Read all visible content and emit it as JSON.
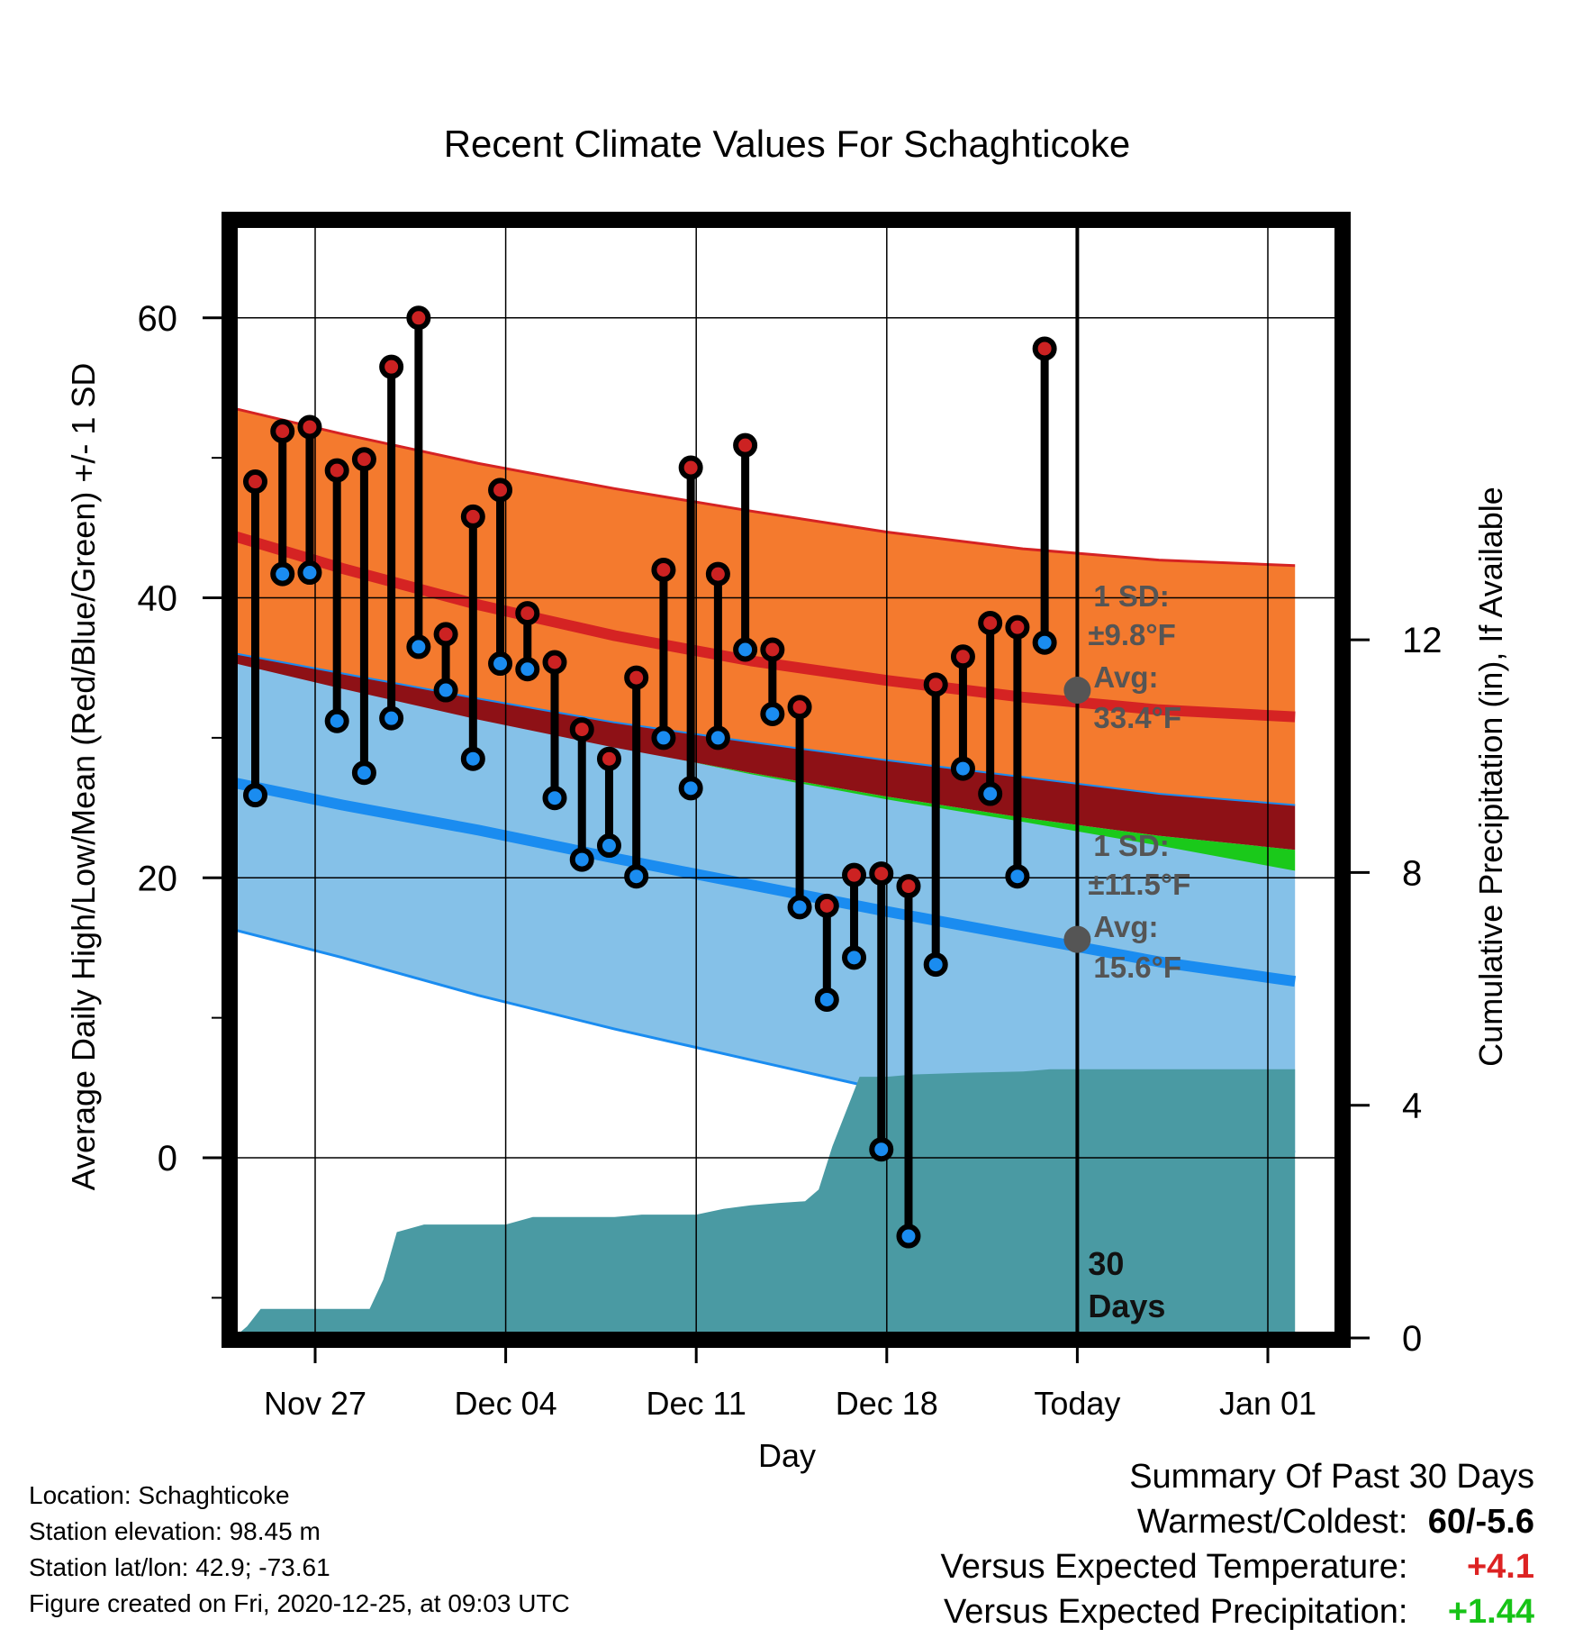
{
  "chart_data": {
    "type": "line",
    "title": "Recent Climate Values For Schaghticoke",
    "xlabel": "Day",
    "ylabel": "Average Daily High/Low/Mean (Red/Blue/Green) +/- 1 SD",
    "y2label": "Cumulative Precipitation (in), If Available",
    "ylim": [
      -13,
      67
    ],
    "y2lim": [
      0,
      19.25
    ],
    "x_ticks": [
      {
        "day": 4,
        "label": "Nov 27"
      },
      {
        "day": 11,
        "label": "Dec 04"
      },
      {
        "day": 18,
        "label": "Dec 11"
      },
      {
        "day": 25,
        "label": "Dec 18"
      },
      {
        "day": 32,
        "label": "Today"
      },
      {
        "day": 39,
        "label": "Jan 01"
      }
    ],
    "y_ticks": [
      0,
      20,
      40,
      60
    ],
    "y2_ticks": [
      0,
      4,
      8,
      12
    ],
    "grid": true,
    "today_day": 32,
    "today_label": "30 Days",
    "normals": {
      "days": [
        0,
        5,
        10,
        15,
        20,
        25,
        30,
        35,
        40
      ],
      "high_upper": [
        54.0,
        51.7,
        49.6,
        47.8,
        46.2,
        44.7,
        43.5,
        42.7,
        42.3
      ],
      "high_mean": [
        45.0,
        42.1,
        39.5,
        37.3,
        35.5,
        34.1,
        32.9,
        32.0,
        31.5
      ],
      "high_lower": [
        36.4,
        34.6,
        32.8,
        31.1,
        29.7,
        28.4,
        27.2,
        26.0,
        25.2
      ],
      "mean_upper": [
        35.8,
        33.5,
        31.3,
        29.3,
        27.5,
        25.8,
        24.3,
        23.0,
        22.0
      ],
      "mean_lower": [
        34.3,
        32.0,
        29.8,
        27.8,
        26.0,
        24.3,
        22.8,
        21.5,
        20.5
      ],
      "low_upper": [
        36.2,
        33.8,
        31.5,
        29.4,
        27.4,
        25.6,
        24.0,
        22.3,
        20.5
      ],
      "low_mean": [
        27.2,
        25.2,
        23.4,
        21.4,
        19.5,
        17.6,
        15.8,
        14.0,
        12.6
      ],
      "low_lower": [
        16.8,
        14.3,
        11.6,
        9.2,
        7.0,
        4.8,
        3.1,
        1.5,
        0.4
      ]
    },
    "high_label": {
      "sd": "1 SD:",
      "sd_value": "±9.8°F",
      "avg": "Avg:",
      "avg_value": "33.4°F",
      "avg_num": 33.4
    },
    "low_label": {
      "sd": "1 SD:",
      "sd_value": "±11.5°F",
      "avg": "Avg:",
      "avg_value": "15.6°F",
      "avg_num": 15.6
    },
    "daily": [
      {
        "day": 1.8,
        "high": 48.3,
        "low": 25.9
      },
      {
        "day": 2.8,
        "high": 51.9,
        "low": 41.7
      },
      {
        "day": 3.8,
        "high": 52.2,
        "low": 41.8
      },
      {
        "day": 4.8,
        "high": 49.1,
        "low": 31.2
      },
      {
        "day": 5.8,
        "high": 49.9,
        "low": 27.5
      },
      {
        "day": 6.8,
        "high": 56.5,
        "low": 31.4
      },
      {
        "day": 7.8,
        "high": 60.0,
        "low": 36.5
      },
      {
        "day": 8.8,
        "high": 37.4,
        "low": 33.4
      },
      {
        "day": 9.8,
        "high": 45.8,
        "low": 28.5
      },
      {
        "day": 10.8,
        "high": 47.7,
        "low": 35.3
      },
      {
        "day": 11.8,
        "high": 38.9,
        "low": 34.9
      },
      {
        "day": 12.8,
        "high": 35.4,
        "low": 25.7
      },
      {
        "day": 13.8,
        "high": 30.6,
        "low": 21.3
      },
      {
        "day": 14.8,
        "high": 28.5,
        "low": 22.3
      },
      {
        "day": 15.8,
        "high": 34.3,
        "low": 20.1
      },
      {
        "day": 16.8,
        "high": 42.0,
        "low": 30.0
      },
      {
        "day": 17.8,
        "high": 49.3,
        "low": 26.4
      },
      {
        "day": 18.8,
        "high": 41.7,
        "low": 30.0
      },
      {
        "day": 19.8,
        "high": 50.9,
        "low": 36.3
      },
      {
        "day": 20.8,
        "high": 36.3,
        "low": 31.7
      },
      {
        "day": 21.8,
        "high": 32.2,
        "low": 17.9
      },
      {
        "day": 22.8,
        "high": 18.0,
        "low": 11.3
      },
      {
        "day": 23.8,
        "high": 20.2,
        "low": 14.3
      },
      {
        "day": 24.8,
        "high": 20.3,
        "low": 0.6
      },
      {
        "day": 25.8,
        "high": 19.4,
        "low": -5.6
      },
      {
        "day": 26.8,
        "high": 33.8,
        "low": 13.8
      },
      {
        "day": 27.8,
        "high": 35.8,
        "low": 27.8
      },
      {
        "day": 28.8,
        "high": 38.2,
        "low": 26.0
      },
      {
        "day": 29.8,
        "high": 37.9,
        "low": 20.1
      },
      {
        "day": 30.8,
        "high": 57.8,
        "low": 36.8
      }
    ],
    "precip_cumulative": {
      "days": [
        1.0,
        1.5,
        2.0,
        3.0,
        4.0,
        5.0,
        6.0,
        6.5,
        7.0,
        8.0,
        11.0,
        12.0,
        15.0,
        16.0,
        18.0,
        19.0,
        20.0,
        21.0,
        22.0,
        22.5,
        23.0,
        24.0,
        25.0,
        26.0,
        28.0,
        30.0,
        31.0,
        40.0
      ],
      "values": [
        0.0,
        0.2,
        0.5,
        0.5,
        0.5,
        0.5,
        0.5,
        1.0,
        1.82,
        1.95,
        1.95,
        2.08,
        2.08,
        2.12,
        2.12,
        2.22,
        2.28,
        2.32,
        2.35,
        2.55,
        3.29,
        4.49,
        4.49,
        4.53,
        4.56,
        4.58,
        4.62,
        4.62
      ]
    }
  },
  "footer": {
    "location": "Location: Schaghticoke",
    "elevation": "Station elevation: 98.45 m",
    "latlon": "Station lat/lon: 42.9; -73.61",
    "created": "Figure created on Fri, 2020-12-25, at 09:03 UTC"
  },
  "summary": {
    "heading": "Summary Of Past 30 Days",
    "warmest_label": "Warmest/Coldest:",
    "warmest_value": "60/-5.6",
    "temp_label": "Versus Expected Temperature:",
    "temp_value": "+4.1",
    "precip_label": "Versus Expected Precipitation:",
    "precip_value": "+1.44"
  },
  "colors": {
    "high_band": "#f47a2e",
    "high_line": "#d52323",
    "mean_band": "#8e1116",
    "mean_line": "#1ac91a",
    "low_band": "#85c1e8",
    "low_line": "#1a8cf0",
    "precip": "#4a9aa3",
    "marker_high": "#cc2222",
    "marker_low": "#1a8cf0",
    "annotation": "#555555"
  }
}
